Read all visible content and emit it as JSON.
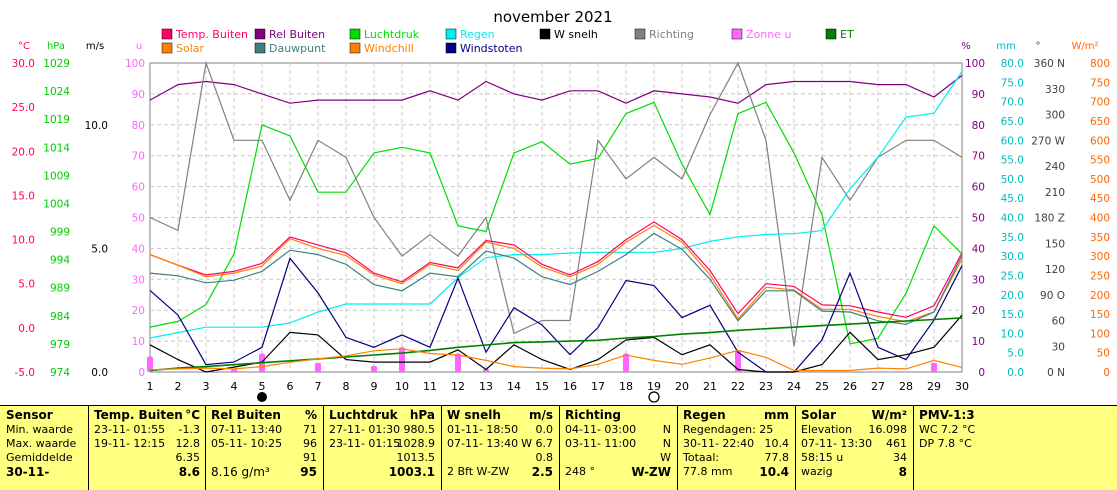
{
  "title": "november 2021",
  "chart_data": {
    "type": "line",
    "title": "november 2021",
    "x": [
      1,
      2,
      3,
      4,
      5,
      6,
      7,
      8,
      9,
      10,
      11,
      12,
      13,
      14,
      15,
      16,
      17,
      18,
      19,
      20,
      21,
      22,
      23,
      24,
      25,
      26,
      27,
      28,
      29,
      30
    ],
    "xlim": [
      1,
      30
    ],
    "legend": [
      {
        "name": "Temp. Buiten",
        "color": "#ff0066"
      },
      {
        "name": "Rel Buiten",
        "color": "#800080"
      },
      {
        "name": "Luchtdruk",
        "color": "#00dd00"
      },
      {
        "name": "Regen",
        "color": "#00eeee"
      },
      {
        "name": "W snelh",
        "color": "#000000"
      },
      {
        "name": "Richting",
        "color": "#808080"
      },
      {
        "name": "Zonne u",
        "color": "#ff66ff"
      },
      {
        "name": "ET",
        "color": "#008000"
      },
      {
        "name": "Solar",
        "color": "#ff8000"
      },
      {
        "name": "Dauwpunt",
        "color": "#408080"
      },
      {
        "name": "Windchill",
        "color": "#ff8000"
      },
      {
        "name": "Windstoten",
        "color": "#000080"
      }
    ],
    "axes": {
      "temp": {
        "label": "°C",
        "color": "#ff0066",
        "ticks": [
          "30.0",
          "25.0",
          "20.0",
          "15.0",
          "10.0",
          "5.0",
          "0.0",
          "-5.0"
        ],
        "range": [
          -5,
          30
        ]
      },
      "press": {
        "label": "hPa",
        "color": "#00cc00",
        "ticks": [
          "1029",
          "1024",
          "1019",
          "1014",
          "1009",
          "1004",
          "999",
          "994",
          "989",
          "984",
          "979",
          "974"
        ],
        "range": [
          974,
          1029
        ]
      },
      "wind": {
        "label": "m/s",
        "color": "#000000",
        "ticks": [
          "10.0",
          "5.0",
          "0.0"
        ],
        "range": [
          0,
          12.5
        ]
      },
      "sun": {
        "label": "u",
        "color": "#ff66ff",
        "ticks": [
          "100",
          "90",
          "80",
          "70",
          "60",
          "50",
          "40",
          "30",
          "20",
          "10",
          "0"
        ],
        "range": [
          0,
          100
        ]
      },
      "hum": {
        "label": "%",
        "color": "#800080",
        "ticks": [
          "100",
          "90",
          "80",
          "70",
          "60",
          "50",
          "40",
          "30",
          "20",
          "10",
          "0"
        ],
        "range": [
          0,
          100
        ]
      },
      "rain": {
        "label": "mm",
        "color": "#00bbbb",
        "ticks": [
          "80.0",
          "75.0",
          "70.0",
          "65.0",
          "60.0",
          "55.0",
          "50.0",
          "45.0",
          "40.0",
          "35.0",
          "30.0",
          "25.0",
          "20.0",
          "15.0",
          "10.0",
          "5.0",
          "0.0"
        ],
        "range": [
          0,
          80
        ]
      },
      "dir": {
        "label": "°",
        "color": "#404040",
        "ticks": [
          "360 N",
          "330",
          "300",
          "270 W",
          "240",
          "210",
          "180 Z",
          "150",
          "120",
          "90 O",
          "60",
          "30",
          "0 N"
        ],
        "range": [
          0,
          360
        ]
      },
      "solar": {
        "label": "W/m²",
        "color": "#ff6600",
        "ticks": [
          "800",
          "750",
          "700",
          "650",
          "600",
          "550",
          "500",
          "450",
          "400",
          "350",
          "300",
          "250",
          "200",
          "150",
          "100",
          "50",
          "0"
        ],
        "range": [
          0,
          800
        ]
      }
    },
    "series": [
      {
        "name": "Rel Buiten",
        "axis": "hum",
        "color": "#800080",
        "values": [
          88,
          93,
          94,
          93,
          90,
          87,
          88,
          88,
          88,
          88,
          91,
          88,
          94,
          90,
          88,
          91,
          91,
          87,
          91,
          90,
          89,
          87,
          93,
          94,
          94,
          94,
          93,
          93,
          89,
          96
        ]
      },
      {
        "name": "Luchtdruk",
        "axis": "press",
        "color": "#00dd00",
        "values": [
          982,
          983,
          986,
          995,
          1018,
          1016,
          1006,
          1006,
          1013,
          1014,
          1013,
          1000,
          999,
          1013,
          1015,
          1011,
          1012,
          1020,
          1022,
          1011,
          1002,
          1020,
          1022,
          1013,
          1002,
          979,
          980,
          988,
          1000,
          995
        ]
      },
      {
        "name": "Richting",
        "axis": "dir",
        "color": "#808080",
        "values": [
          180,
          165,
          360,
          270,
          270,
          200,
          270,
          250,
          180,
          135,
          160,
          135,
          180,
          45,
          60,
          60,
          270,
          225,
          250,
          225,
          300,
          360,
          270,
          30,
          250,
          200,
          250,
          270,
          270,
          250
        ]
      },
      {
        "name": "Regen",
        "axis": "rain",
        "color": "#00eeee",
        "values": [
          8.8,
          10.2,
          11.6,
          11.6,
          11.6,
          12.7,
          15.5,
          17.6,
          17.6,
          17.6,
          17.6,
          24.4,
          29.6,
          30.4,
          30.4,
          30.8,
          31,
          31,
          31,
          32,
          33.8,
          35,
          35.6,
          35.8,
          36.6,
          47.4,
          55.6,
          66,
          67,
          77.8
        ]
      },
      {
        "name": "Temp. Buiten",
        "axis": "temp",
        "color": "#ff0066",
        "values": [
          8.3,
          7.1,
          6,
          6.4,
          7.3,
          10.3,
          9.4,
          8.5,
          6.2,
          5.2,
          7.4,
          6.8,
          9.9,
          9.4,
          7.2,
          6,
          7.5,
          10,
          12,
          10,
          6.5,
          1.6,
          5,
          4.7,
          2.6,
          2.5,
          1.8,
          1.2,
          2.5,
          8.5
        ]
      },
      {
        "name": "Windchill",
        "axis": "temp",
        "color": "#ff8000",
        "values": [
          8.3,
          7.1,
          5.8,
          6.2,
          7,
          10.1,
          9,
          8.2,
          6,
          5,
          7.2,
          6.5,
          9.7,
          9,
          6.9,
          5.8,
          7.2,
          9.7,
          11.6,
          9.7,
          6,
          1,
          4.6,
          4.3,
          2.1,
          2.1,
          1.3,
          0.7,
          1.8,
          7.8
        ]
      },
      {
        "name": "Dauwpunt",
        "axis": "temp",
        "color": "#408080",
        "values": [
          6.2,
          5.9,
          5.1,
          5.4,
          6.4,
          8.8,
          8.3,
          7.2,
          4.9,
          4.2,
          6.2,
          5.8,
          8.7,
          7.9,
          5.8,
          4.9,
          6.4,
          8.3,
          10.7,
          8.9,
          5.5,
          0.8,
          4.2,
          4.2,
          1.9,
          1.8,
          0.8,
          0.4,
          1.8,
          8.2
        ]
      },
      {
        "name": "Windstoten",
        "axis": "wind",
        "color": "#000080",
        "values": [
          3.3,
          2.3,
          0.3,
          0.4,
          1,
          4.6,
          3.2,
          1.4,
          1,
          1.5,
          1,
          3.8,
          0.8,
          2.6,
          1.9,
          0.7,
          1.8,
          3.7,
          3.5,
          2.2,
          2.7,
          0.8,
          0,
          0,
          1.3,
          4,
          1,
          0.5,
          2.1,
          4.3
        ]
      },
      {
        "name": "W snelh",
        "axis": "wind",
        "color": "#000000",
        "values": [
          1.1,
          0.5,
          0,
          0.2,
          0.4,
          1.6,
          1.5,
          0.5,
          0.4,
          0.4,
          0.4,
          0.9,
          0.1,
          1.1,
          0.5,
          0.1,
          0.5,
          1.3,
          1.4,
          0.7,
          1.1,
          0.1,
          0,
          0,
          0.3,
          1.6,
          0.5,
          0.7,
          1,
          2.3
        ]
      },
      {
        "name": "ET",
        "axis": "solar",
        "color": "#008000",
        "values": [
          4,
          10,
          14,
          19,
          24,
          29,
          34,
          39,
          44,
          49,
          56,
          64,
          70,
          76,
          78,
          80,
          82,
          88,
          92,
          98,
          102,
          108,
          112,
          116,
          120,
          124,
          128,
          132,
          136,
          140
        ]
      },
      {
        "name": "Solar",
        "axis": "solar",
        "color": "#ff8000",
        "values": [
          6,
          8,
          10,
          8,
          14,
          25,
          34,
          42,
          55,
          60,
          48,
          44,
          30,
          14,
          10,
          8,
          20,
          44,
          30,
          20,
          36,
          56,
          38,
          4,
          4,
          4,
          10,
          8,
          30,
          12
        ]
      }
    ],
    "bars": {
      "name": "Zonne u",
      "axis": "sun",
      "color": "#ff66ff",
      "values": [
        5,
        0,
        0,
        1,
        6,
        0,
        3,
        0,
        2,
        8,
        0,
        6,
        1,
        0,
        0,
        0,
        0,
        6,
        0,
        0,
        0,
        7,
        0,
        0,
        0,
        0,
        0,
        0,
        3,
        0
      ]
    },
    "moon": {
      "full_day": 5,
      "new_day": 19
    }
  },
  "stats": {
    "sensor": {
      "header": "Sensor",
      "rows": [
        "Min. waarde",
        "Max. waarde",
        "Gemiddelde",
        "30-11-"
      ]
    },
    "temp": {
      "header": "Temp. Buiten",
      "unit": "°C",
      "rows": [
        [
          "23-11-  01:55",
          "-1.3"
        ],
        [
          "19-11-  12:15",
          "12.8"
        ],
        [
          "",
          "6.35"
        ],
        [
          "",
          "8.6"
        ]
      ]
    },
    "hum": {
      "header": "Rel Buiten",
      "unit": "%",
      "rows": [
        [
          "07-11-  13:40",
          "71"
        ],
        [
          "05-11-  10:25",
          "96"
        ],
        [
          "",
          "91"
        ],
        [
          "8.16 g/m³",
          "95"
        ]
      ]
    },
    "press": {
      "header": "Luchtdruk",
      "unit": "hPa",
      "rows": [
        [
          "27-11-  01:30",
          "980.5"
        ],
        [
          "23-11-  01:15",
          "1028.9"
        ],
        [
          "",
          "1013.5"
        ],
        [
          "",
          "1003.1"
        ]
      ]
    },
    "wind": {
      "header": "W snelh",
      "unit": "m/s",
      "rows": [
        [
          "01-11-  18:50",
          "0.0"
        ],
        [
          "07-11-  13:40",
          "W 6.7"
        ],
        [
          "",
          "0.8"
        ],
        [
          "2 Bft W-ZW",
          "2.5"
        ]
      ]
    },
    "dir": {
      "header": "Richting",
      "unit": "",
      "rows": [
        [
          "04-11-  03:00",
          "N"
        ],
        [
          "03-11-  11:00",
          "N"
        ],
        [
          "",
          "W"
        ],
        [
          "248 °",
          "W-ZW"
        ]
      ]
    },
    "rain": {
      "header": "Regen",
      "unit": "mm",
      "rows": [
        [
          "Regendagen: 25",
          ""
        ],
        [
          "30-11-  22:40",
          "10.4"
        ],
        [
          "Totaal:",
          "77.8"
        ],
        [
          "77.8 mm",
          "10.4"
        ]
      ]
    },
    "solar": {
      "header": "Solar",
      "unit": "W/m²",
      "rows": [
        [
          "Elevation",
          "16.098"
        ],
        [
          "07-11-  13:30",
          "461"
        ],
        [
          "58:15 u",
          "34"
        ],
        [
          "wazig",
          "8"
        ]
      ]
    },
    "pmv": {
      "header": "PMV-1:3",
      "rows": [
        "WC 7.2 °C",
        "DP 7.8 °C"
      ]
    }
  }
}
